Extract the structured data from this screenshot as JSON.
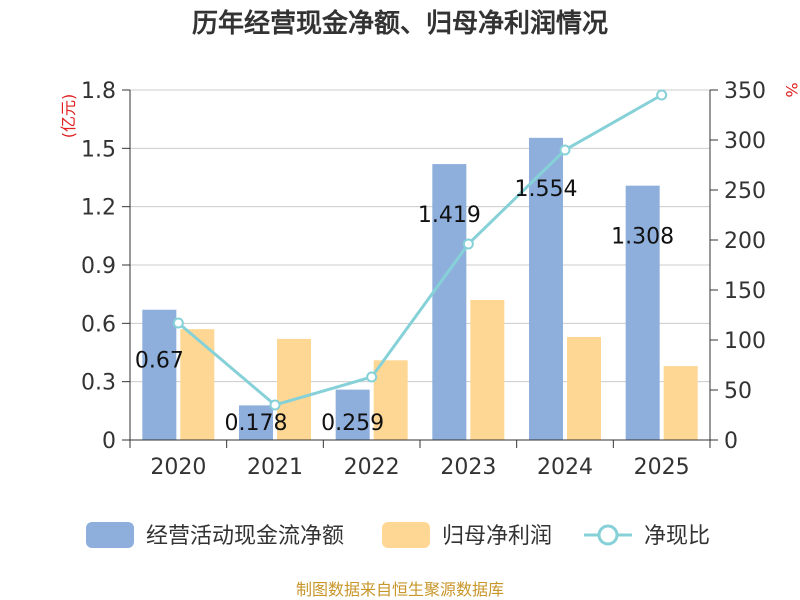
{
  "chart_data": {
    "type": "bar",
    "title": "历年经营现金净额、归母净利润情况",
    "categories": [
      "2020",
      "2021",
      "2022",
      "2023",
      "2024",
      "2025"
    ],
    "series": [
      {
        "name": "经营活动现金流净额",
        "type": "bar",
        "axis": "left",
        "color": "#8EAEDC",
        "values": [
          0.67,
          0.178,
          0.259,
          1.419,
          1.554,
          1.308
        ],
        "labels": [
          "0.67",
          "0.178",
          "0.259",
          "1.419",
          "1.554",
          "1.308"
        ]
      },
      {
        "name": "归母净利润",
        "type": "bar",
        "axis": "left",
        "color": "#FFD794",
        "values": [
          0.57,
          0.52,
          0.41,
          0.72,
          0.53,
          0.38
        ]
      },
      {
        "name": "净现比",
        "type": "line",
        "axis": "right",
        "color": "#86D1D8",
        "values": [
          117,
          35,
          63,
          196,
          290,
          345
        ]
      }
    ],
    "y_left": {
      "unit": "(亿元)",
      "ylim": [
        0,
        1.8
      ],
      "ticks": [
        "0",
        "0.3",
        "0.6",
        "0.9",
        "1.2",
        "1.5",
        "1.8"
      ]
    },
    "y_right": {
      "unit": "%",
      "ylim": [
        0,
        350
      ],
      "ticks": [
        "0",
        "50",
        "100",
        "150",
        "200",
        "250",
        "300",
        "350"
      ]
    },
    "legend_position": "bottom",
    "grid": true,
    "source": "制图数据来自恒生聚源数据库",
    "colors": {
      "unit": "#E02020",
      "source": "#C8962A",
      "axis": "#333333",
      "grid": "#CCCCCC"
    }
  }
}
